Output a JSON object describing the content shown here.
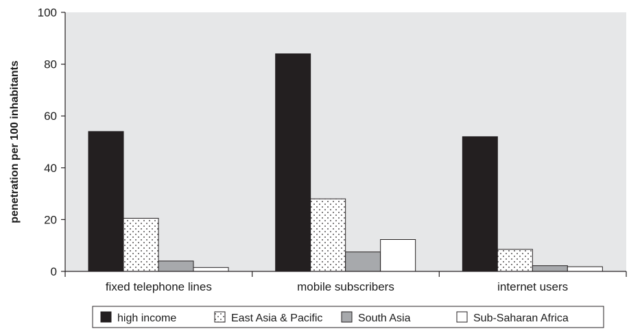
{
  "chart_data": {
    "type": "bar",
    "title": "",
    "xlabel": "",
    "ylabel": "penetration per 100 inhabitants",
    "ylim": [
      0,
      100
    ],
    "yticks": [
      "0",
      "20",
      "40",
      "60",
      "80",
      "100"
    ],
    "grid": false,
    "legend_position": "bottom",
    "categories": [
      "fixed telephone lines",
      "mobile subscribers",
      "internet users"
    ],
    "series": [
      {
        "name": "high income",
        "values": [
          54,
          84,
          52
        ],
        "fill": "#231f20",
        "pattern": "solid"
      },
      {
        "name": "East Asia & Pacific",
        "values": [
          20.5,
          28,
          8.5
        ],
        "fill": "#ffffff",
        "pattern": "dots"
      },
      {
        "name": "South Asia",
        "values": [
          4,
          7.5,
          2.2
        ],
        "fill": "#a7a9ac",
        "pattern": "solid"
      },
      {
        "name": "Sub-Saharan Africa",
        "values": [
          1.5,
          12.3,
          1.8
        ],
        "fill": "#ffffff",
        "pattern": "solid"
      }
    ],
    "plot_background": "#e6e7e8"
  }
}
